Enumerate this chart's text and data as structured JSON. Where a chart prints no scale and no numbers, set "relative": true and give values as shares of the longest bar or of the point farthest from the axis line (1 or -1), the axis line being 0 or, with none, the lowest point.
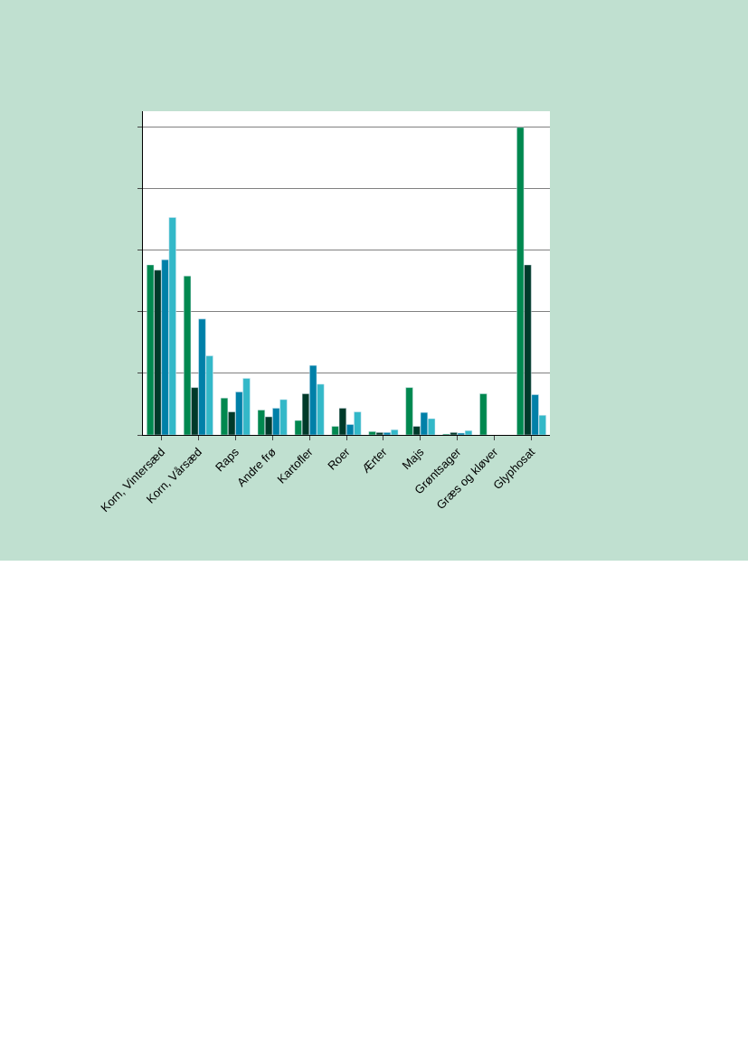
{
  "chart_data": {
    "type": "bar",
    "relative": true,
    "grid": "y",
    "categories": [
      "Korn, Vintersæd",
      "Korn, Vårsæd",
      "Raps",
      "Andre frø",
      "Kartofler",
      "Roer",
      "Ærter",
      "Majs",
      "Grøntsager",
      "Græs og kløver",
      "Glyphosat"
    ],
    "series": [
      {
        "color": "#00884f",
        "values": [
          0.553,
          0.517,
          0.12,
          0.081,
          0.047,
          0.028,
          0.011,
          0.154,
          0.003,
          0.134,
          1
        ]
      },
      {
        "color": "#003a2a",
        "values": [
          0.536,
          0.154,
          0.075,
          0.059,
          0.134,
          0.087,
          0.008,
          0.028,
          0.008,
          null,
          0.553
        ]
      },
      {
        "color": "#0080a8",
        "values": [
          0.57,
          0.377,
          0.14,
          0.087,
          0.226,
          0.034,
          0.008,
          0.073,
          0.006,
          null,
          0.131
        ]
      },
      {
        "color": "#33b8c8",
        "values": [
          0.707,
          0.257,
          0.184,
          0.115,
          0.165,
          0.075,
          0.017,
          0.053,
          0.014,
          null,
          0.064
        ]
      }
    ]
  }
}
